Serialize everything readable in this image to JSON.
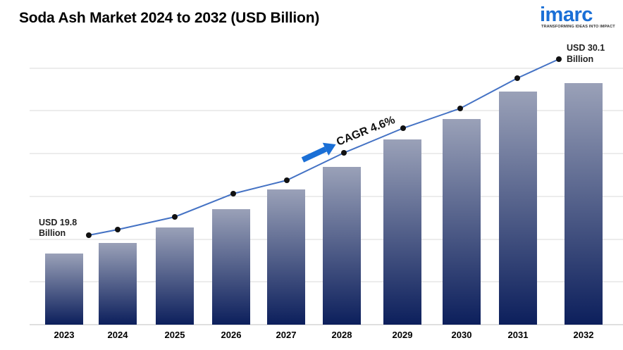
{
  "title": "Soda Ash Market 2024 to 2032 (USD Billion)",
  "logo": {
    "wordmark": "imarc",
    "tagline": "TRANSFORMING IDEAS INTO IMPACT",
    "color": "#1a6fd6"
  },
  "chart_data": {
    "type": "bar",
    "title": "Soda Ash Market 2024 to 2032 (USD Billion)",
    "categories": [
      "2023",
      "2024",
      "2025",
      "2026",
      "2027",
      "2028",
      "2029",
      "2030",
      "2031",
      "2032"
    ],
    "series": [
      {
        "values": [
          19.8,
          20.7,
          21.7,
          22.7,
          23.7,
          24.8,
          26.0,
          27.2,
          28.4,
          30.1
        ]
      }
    ],
    "trend_line": [
      19.8,
      20.7,
      21.7,
      22.7,
      23.7,
      24.8,
      26.0,
      27.2,
      28.4,
      30.1
    ],
    "annotations": {
      "start_label": [
        "USD 19.8",
        "Billion"
      ],
      "end_label": [
        "USD 30.1",
        "Billion"
      ],
      "cagr": "CAGR 4.6%"
    },
    "grid": true,
    "bar_color_top": "#9aa1b8",
    "bar_color_bottom": "#0c1f5c",
    "line_color": "#4472c4",
    "arrow_color": "#1a6fd6"
  }
}
